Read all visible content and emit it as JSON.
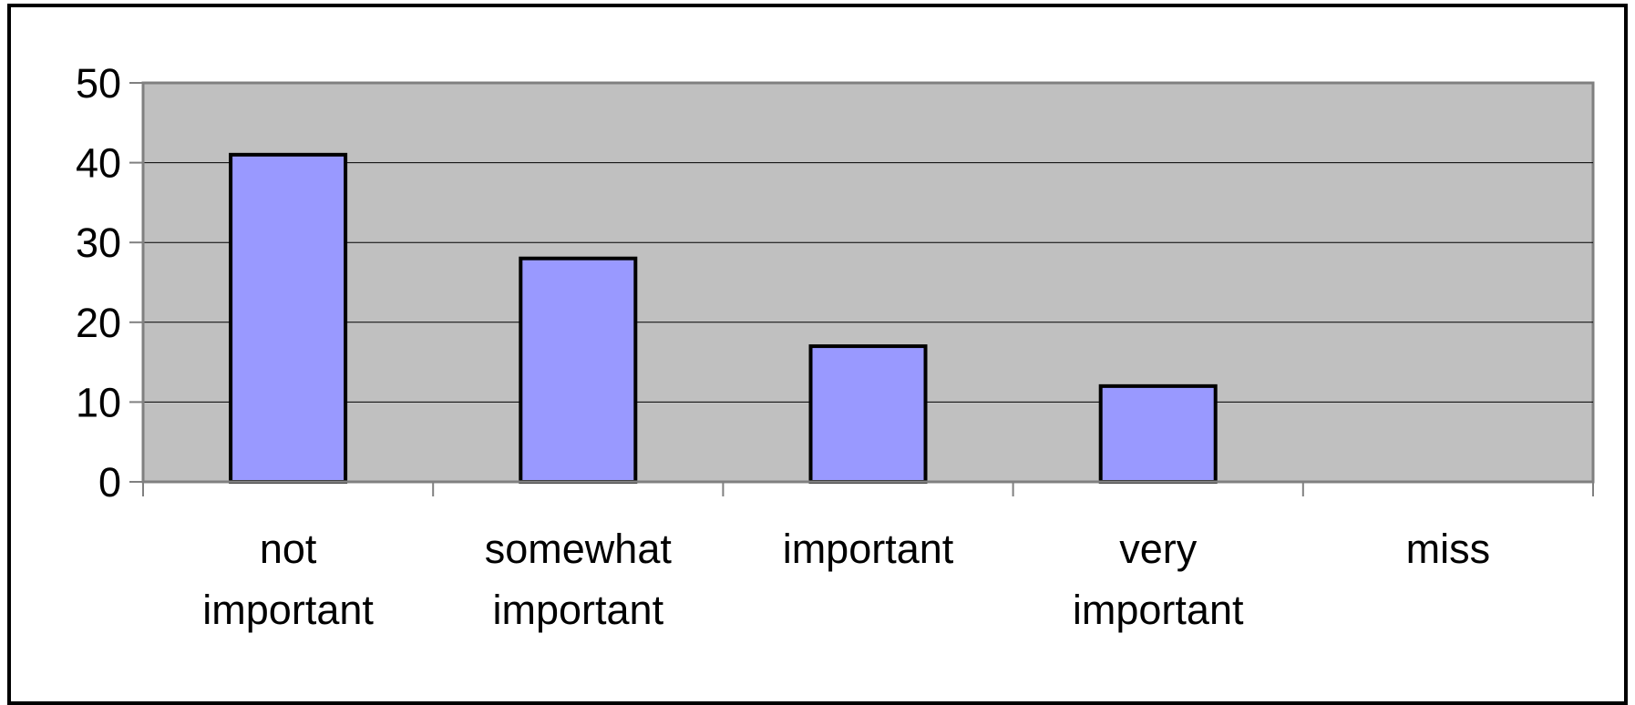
{
  "chart_data": {
    "type": "bar",
    "categories": [
      [
        "not",
        "important"
      ],
      [
        "somewhat",
        "important"
      ],
      [
        "important"
      ],
      [
        "very",
        "important"
      ],
      [
        "miss"
      ]
    ],
    "values": [
      41,
      28,
      17,
      12,
      0
    ],
    "ylim": [
      0,
      50
    ],
    "yticks": [
      "0",
      "10",
      "20",
      "30",
      "40",
      "50"
    ],
    "grid": true,
    "legend": "none",
    "colors": {
      "plot_background": "#c0c0c0",
      "bar_fill": "#9999ff",
      "bar_stroke": "#000000",
      "gridline": "#000000",
      "axis": "#808080"
    }
  }
}
